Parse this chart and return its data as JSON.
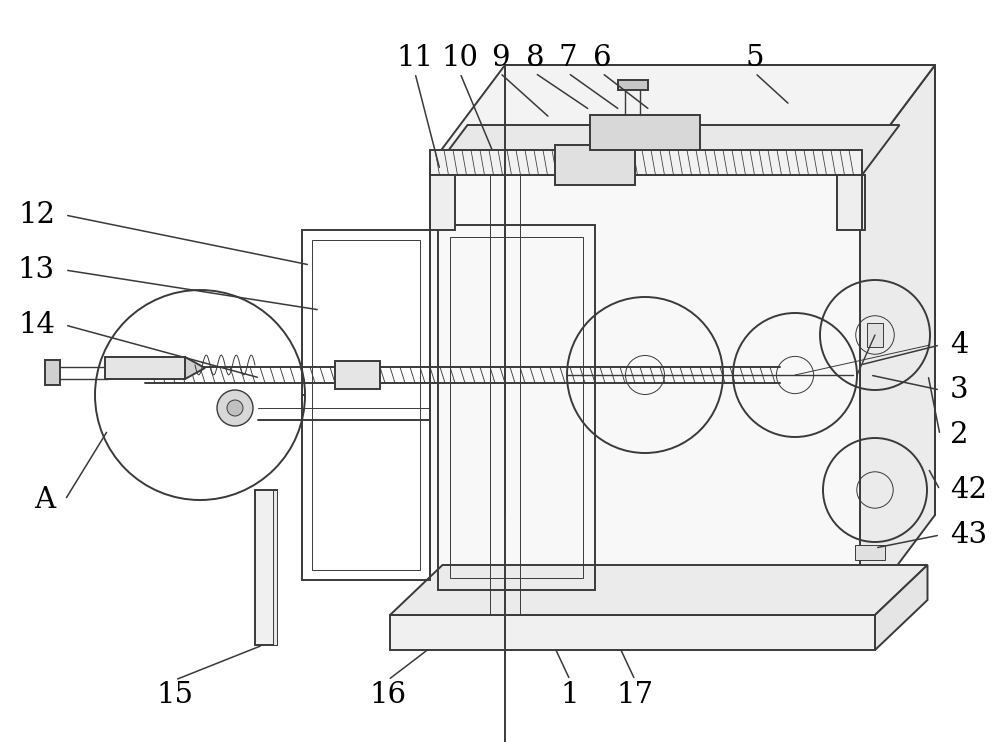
{
  "bg_color": "#ffffff",
  "line_color": "#3a3a3a",
  "lw_main": 1.4,
  "lw_thin": 0.7,
  "lw_med": 1.0,
  "figure_width": 10.0,
  "figure_height": 7.42
}
